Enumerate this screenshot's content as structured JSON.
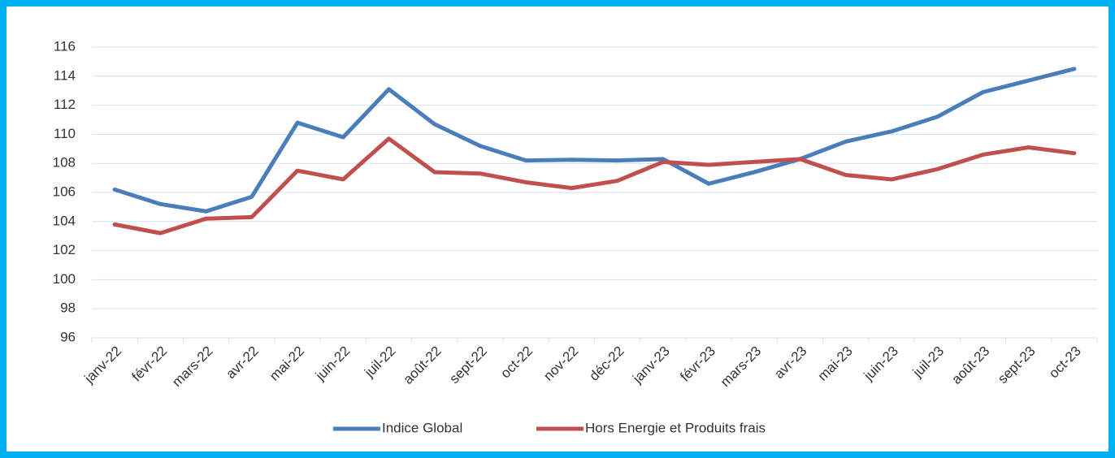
{
  "chart_data": {
    "type": "line",
    "categories": [
      "janv-22",
      "févr-22",
      "mars-22",
      "avr-22",
      "mai-22",
      "juin-22",
      "juil-22",
      "août-22",
      "sept-22",
      "oct-22",
      "nov-22",
      "déc-22",
      "janv-23",
      "févr-23",
      "mars-23",
      "avr-23",
      "mai-23",
      "juin-23",
      "juil-23",
      "août-23",
      "sept-23",
      "oct-23"
    ],
    "series": [
      {
        "name": "Indice Global",
        "color": "#4a7ebb",
        "values": [
          106.2,
          105.2,
          104.7,
          105.7,
          110.8,
          109.8,
          113.1,
          110.7,
          109.2,
          108.2,
          108.25,
          108.2,
          108.3,
          106.6,
          107.4,
          108.3,
          109.5,
          110.2,
          111.2,
          112.9,
          113.7,
          114.5
        ]
      },
      {
        "name": "Hors Energie et Produits frais",
        "color": "#c0504d",
        "values": [
          103.8,
          103.2,
          104.2,
          104.3,
          107.5,
          106.9,
          109.7,
          107.4,
          107.3,
          106.7,
          106.3,
          106.8,
          108.1,
          107.9,
          108.1,
          108.3,
          107.2,
          106.9,
          107.6,
          108.6,
          109.1,
          108.7
        ]
      }
    ],
    "ylim": [
      96,
      116
    ],
    "yticks": [
      96,
      98,
      100,
      102,
      104,
      106,
      108,
      110,
      112,
      114,
      116
    ],
    "grid": true,
    "legend": "bottom"
  }
}
